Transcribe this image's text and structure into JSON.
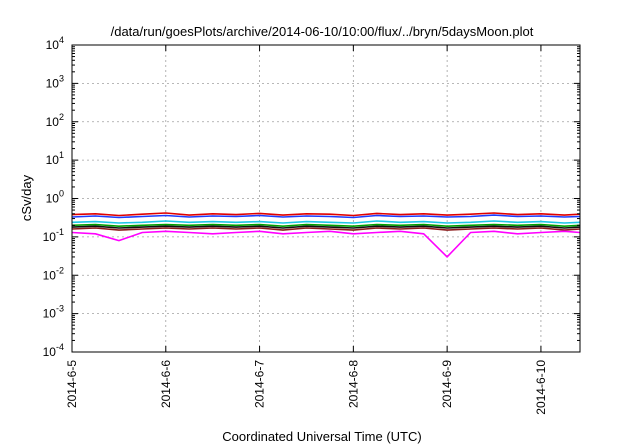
{
  "chart_data": {
    "type": "line",
    "title": "/data/run/goesPlots/archive/2014-06-10/10:00/flux/../bryn/5daysMoon.plot",
    "xlabel": "Coordinated Universal Time (UTC)",
    "ylabel": "cSv/day",
    "x_ticks": [
      "2014-6-5",
      "2014-6-6",
      "2014-6-7",
      "2014-6-8",
      "2014-6-9",
      "2014-6-10"
    ],
    "x_tick_dates": [
      "2014-06-05",
      "2014-06-06",
      "2014-06-07",
      "2014-06-08",
      "2014-06-09",
      "2014-06-10"
    ],
    "xlim": [
      "2014-06-05T00:00",
      "2014-06-10T10:00"
    ],
    "y_scale": "log",
    "ylim": [
      0.0001,
      10000
    ],
    "y_ticks": [
      {
        "base": "10",
        "exp": "-4"
      },
      {
        "base": "10",
        "exp": "-3"
      },
      {
        "base": "10",
        "exp": "-2"
      },
      {
        "base": "10",
        "exp": "-1"
      },
      {
        "base": "10",
        "exp": "0"
      },
      {
        "base": "10",
        "exp": "1"
      },
      {
        "base": "10",
        "exp": "2"
      },
      {
        "base": "10",
        "exp": "3"
      },
      {
        "base": "10",
        "exp": "4"
      }
    ],
    "grid": true,
    "x": [
      "2014-06-05T00:00",
      "2014-06-05T06:00",
      "2014-06-05T12:00",
      "2014-06-05T18:00",
      "2014-06-06T00:00",
      "2014-06-06T06:00",
      "2014-06-06T12:00",
      "2014-06-06T18:00",
      "2014-06-07T00:00",
      "2014-06-07T06:00",
      "2014-06-07T12:00",
      "2014-06-07T18:00",
      "2014-06-08T00:00",
      "2014-06-08T06:00",
      "2014-06-08T12:00",
      "2014-06-08T18:00",
      "2014-06-09T00:00",
      "2014-06-09T06:00",
      "2014-06-09T12:00",
      "2014-06-09T18:00",
      "2014-06-10T00:00",
      "2014-06-10T06:00",
      "2014-06-10T10:00"
    ],
    "series": [
      {
        "color": "#e00000",
        "values": [
          0.38,
          0.4,
          0.36,
          0.39,
          0.42,
          0.37,
          0.4,
          0.38,
          0.41,
          0.37,
          0.4,
          0.39,
          0.36,
          0.41,
          0.38,
          0.4,
          0.37,
          0.39,
          0.42,
          0.38,
          0.4,
          0.37,
          0.39
        ]
      },
      {
        "color": "#1e3cff",
        "values": [
          0.33,
          0.35,
          0.32,
          0.34,
          0.36,
          0.33,
          0.35,
          0.34,
          0.36,
          0.33,
          0.35,
          0.34,
          0.32,
          0.36,
          0.34,
          0.35,
          0.33,
          0.34,
          0.37,
          0.34,
          0.35,
          0.33,
          0.34
        ]
      },
      {
        "color": "#1ec8e6",
        "values": [
          0.24,
          0.25,
          0.23,
          0.24,
          0.26,
          0.24,
          0.25,
          0.24,
          0.25,
          0.23,
          0.25,
          0.24,
          0.23,
          0.26,
          0.24,
          0.25,
          0.23,
          0.24,
          0.26,
          0.24,
          0.25,
          0.23,
          0.24
        ]
      },
      {
        "color": "#00a000",
        "values": [
          0.2,
          0.21,
          0.19,
          0.2,
          0.21,
          0.2,
          0.21,
          0.2,
          0.21,
          0.19,
          0.21,
          0.2,
          0.19,
          0.21,
          0.2,
          0.21,
          0.19,
          0.2,
          0.21,
          0.2,
          0.21,
          0.19,
          0.2
        ]
      },
      {
        "color": "#101010",
        "values": [
          0.18,
          0.19,
          0.17,
          0.18,
          0.19,
          0.18,
          0.19,
          0.18,
          0.19,
          0.17,
          0.19,
          0.18,
          0.17,
          0.19,
          0.18,
          0.19,
          0.17,
          0.18,
          0.19,
          0.18,
          0.19,
          0.17,
          0.18
        ]
      },
      {
        "color": "#8c1a1a",
        "values": [
          0.16,
          0.17,
          0.15,
          0.16,
          0.17,
          0.16,
          0.17,
          0.16,
          0.17,
          0.15,
          0.17,
          0.16,
          0.15,
          0.17,
          0.16,
          0.17,
          0.15,
          0.16,
          0.17,
          0.16,
          0.17,
          0.15,
          0.16
        ]
      },
      {
        "color": "#ff00ff",
        "values": [
          0.13,
          0.12,
          0.08,
          0.13,
          0.14,
          0.13,
          0.12,
          0.13,
          0.14,
          0.12,
          0.13,
          0.14,
          0.12,
          0.13,
          0.14,
          0.12,
          0.03,
          0.13,
          0.14,
          0.12,
          0.13,
          0.14,
          0.13
        ]
      }
    ]
  }
}
